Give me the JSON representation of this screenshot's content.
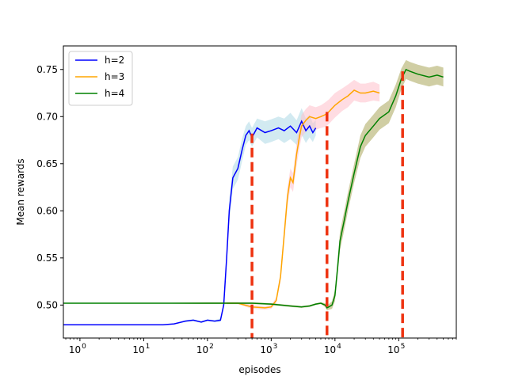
{
  "chart_data": {
    "type": "line",
    "title": "",
    "xlabel": "episodes",
    "ylabel": "Mean rewards",
    "xscale": "log",
    "xlim": [
      0.55,
      800000
    ],
    "ylim": [
      0.465,
      0.775
    ],
    "grid": false,
    "legend_position": "top-left",
    "x_ticks": [
      {
        "value": 1,
        "base": "10",
        "exp": "0"
      },
      {
        "value": 10,
        "base": "10",
        "exp": "1"
      },
      {
        "value": 100,
        "base": "10",
        "exp": "2"
      },
      {
        "value": 1000,
        "base": "10",
        "exp": "3"
      },
      {
        "value": 10000,
        "base": "10",
        "exp": "4"
      },
      {
        "value": 100000,
        "base": "10",
        "exp": "5"
      }
    ],
    "y_ticks": [
      {
        "value": 0.5,
        "label": "0.50"
      },
      {
        "value": 0.55,
        "label": "0.55"
      },
      {
        "value": 0.6,
        "label": "0.60"
      },
      {
        "value": 0.65,
        "label": "0.65"
      },
      {
        "value": 0.7,
        "label": "0.70"
      },
      {
        "value": 0.75,
        "label": "0.75"
      }
    ],
    "series": [
      {
        "name": "h=2",
        "color": "#0000ff",
        "band_color": "#add8e6",
        "x": [
          0.55,
          1,
          3,
          10,
          20,
          30,
          45,
          60,
          80,
          100,
          130,
          160,
          180,
          200,
          220,
          250,
          300,
          350,
          400,
          450,
          500,
          600,
          800,
          1000,
          1300,
          1600,
          2000,
          2500,
          3000,
          3500,
          4000,
          4500,
          5000
        ],
        "y": [
          0.479,
          0.479,
          0.479,
          0.479,
          0.479,
          0.48,
          0.483,
          0.484,
          0.482,
          0.484,
          0.483,
          0.484,
          0.5,
          0.55,
          0.6,
          0.635,
          0.645,
          0.665,
          0.68,
          0.685,
          0.678,
          0.688,
          0.683,
          0.685,
          0.688,
          0.685,
          0.69,
          0.683,
          0.695,
          0.685,
          0.69,
          0.683,
          0.688
        ],
        "spread": [
          0,
          0,
          0,
          0,
          0,
          0,
          0.001,
          0.001,
          0.001,
          0.001,
          0.001,
          0.002,
          0.004,
          0.008,
          0.012,
          0.012,
          0.012,
          0.012,
          0.01,
          0.01,
          0.01,
          0.01,
          0.012,
          0.012,
          0.012,
          0.013,
          0.014,
          0.013,
          0.014,
          0.013,
          0.012,
          0.01,
          0.008
        ]
      },
      {
        "name": "h=3",
        "color": "#ffa500",
        "band_color": "#ffc0cb",
        "x": [
          200,
          300,
          500,
          800,
          1000,
          1200,
          1400,
          1600,
          1800,
          2000,
          2200,
          2500,
          2800,
          3000,
          3500,
          4000,
          5000,
          6000,
          7000,
          8000,
          10000,
          13000,
          16000,
          20000,
          25000,
          30000,
          40000,
          50000
        ],
        "y": [
          0.502,
          0.502,
          0.498,
          0.497,
          0.498,
          0.505,
          0.53,
          0.575,
          0.615,
          0.635,
          0.63,
          0.66,
          0.68,
          0.69,
          0.696,
          0.7,
          0.698,
          0.7,
          0.702,
          0.705,
          0.712,
          0.718,
          0.722,
          0.728,
          0.725,
          0.725,
          0.727,
          0.725
        ],
        "spread": [
          0.001,
          0.001,
          0.002,
          0.002,
          0.002,
          0.003,
          0.005,
          0.008,
          0.01,
          0.01,
          0.01,
          0.012,
          0.012,
          0.012,
          0.012,
          0.012,
          0.012,
          0.012,
          0.013,
          0.013,
          0.013,
          0.012,
          0.012,
          0.011,
          0.01,
          0.01,
          0.01,
          0.009
        ]
      },
      {
        "name": "h=4",
        "color": "#008000",
        "band_color": "#a9a55a",
        "x": [
          0.55,
          1,
          10,
          100,
          500,
          1000,
          2000,
          3000,
          4000,
          5000,
          6000,
          7000,
          7500,
          8000,
          9000,
          10000,
          11000,
          12000,
          14000,
          16000,
          20000,
          25000,
          30000,
          40000,
          50000,
          70000,
          90000,
          110000,
          130000,
          150000,
          200000,
          300000,
          400000,
          500000
        ],
        "y": [
          0.502,
          0.502,
          0.502,
          0.502,
          0.502,
          0.501,
          0.499,
          0.498,
          0.499,
          0.501,
          0.502,
          0.5,
          0.497,
          0.498,
          0.5,
          0.51,
          0.54,
          0.568,
          0.59,
          0.61,
          0.64,
          0.668,
          0.68,
          0.69,
          0.698,
          0.705,
          0.722,
          0.74,
          0.75,
          0.748,
          0.745,
          0.742,
          0.744,
          0.742
        ],
        "spread": [
          0,
          0,
          0,
          0.001,
          0.001,
          0.001,
          0.001,
          0.001,
          0.001,
          0.001,
          0.001,
          0.002,
          0.003,
          0.003,
          0.004,
          0.006,
          0.008,
          0.01,
          0.01,
          0.01,
          0.01,
          0.012,
          0.012,
          0.012,
          0.012,
          0.012,
          0.012,
          0.011,
          0.01,
          0.01,
          0.01,
          0.01,
          0.01,
          0.01
        ]
      }
    ],
    "vertical_markers": {
      "color": "#ee3311",
      "lines": [
        {
          "x": 500,
          "y_top": 0.682
        },
        {
          "x": 7500,
          "y_top": 0.705
        },
        {
          "x": 115000,
          "y_top": 0.748
        }
      ]
    }
  }
}
